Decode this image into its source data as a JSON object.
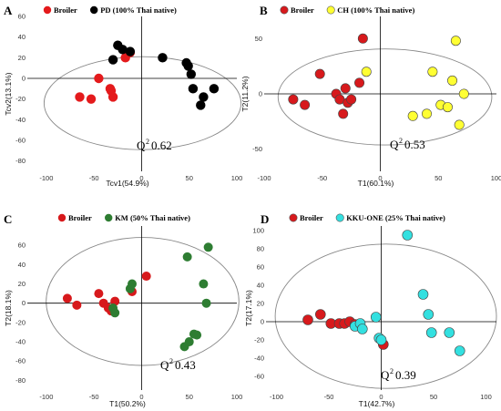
{
  "chart_data": [
    {
      "type": "scatter",
      "panel": "A",
      "xlabel": "Tcv1(54.9%)",
      "ylabel": "Tcv2(13.1%)",
      "xlim": [
        -120,
        100
      ],
      "ylim": [
        -90,
        60
      ],
      "xticks": [
        "-100",
        "-50",
        "0",
        "50",
        "100"
      ],
      "yticks": [
        "60",
        "40",
        "20",
        "0",
        "-20",
        "-40",
        "-60",
        "-80"
      ],
      "q2_label": "Q",
      "q2_sup": "2",
      "q2_value": "0.62",
      "series": [
        {
          "name": "Broiler",
          "color": "#e41a1c",
          "x": [
            -65,
            -53,
            -45,
            -33,
            -32,
            -30,
            -17,
            -12
          ],
          "y": [
            -18,
            -20,
            0,
            -10,
            -12,
            -18,
            20,
            25
          ]
        },
        {
          "name": "PD (100% Thai native)",
          "color": "#000000",
          "x": [
            -30,
            -25,
            -20,
            -12,
            22,
            47,
            49,
            52,
            54,
            62,
            65,
            76
          ],
          "y": [
            18,
            32,
            28,
            26,
            20,
            15,
            12,
            4,
            -10,
            -26,
            -18,
            -10
          ]
        }
      ]
    },
    {
      "type": "scatter",
      "panel": "B",
      "xlabel": "T1(60.1%)",
      "ylabel": "T2(11.2%)",
      "xlim": [
        -100,
        100
      ],
      "ylim": [
        -70,
        70
      ],
      "xticks": [
        "-100",
        "-50",
        "0",
        "50",
        "100"
      ],
      "yticks": [
        "50",
        "0",
        "-50"
      ],
      "q2_label": "Q",
      "q2_sup": "2",
      "q2_value": "0.53",
      "series": [
        {
          "name": "Broiler",
          "color": "#d7191c",
          "x": [
            -75,
            -65,
            -52,
            -38,
            -35,
            -32,
            -30,
            -28,
            -25,
            -18,
            -15
          ],
          "y": [
            -5,
            -10,
            18,
            0,
            -5,
            -18,
            5,
            -8,
            -5,
            10,
            50
          ]
        },
        {
          "name": "CH (100% Thai native)",
          "color": "#ffff33",
          "x": [
            -12,
            28,
            40,
            45,
            52,
            58,
            62,
            65,
            68,
            72
          ],
          "y": [
            20,
            -20,
            -18,
            20,
            -10,
            -12,
            12,
            48,
            -28,
            0
          ]
        }
      ]
    },
    {
      "type": "scatter",
      "panel": "C",
      "xlabel": "T1(50.2%)",
      "ylabel": "T2(18.1%)",
      "xlim": [
        -120,
        100
      ],
      "ylim": [
        -90,
        80
      ],
      "xticks": [
        "-100",
        "-50",
        "0",
        "50",
        "100"
      ],
      "yticks": [
        "60",
        "40",
        "20",
        "0",
        "-20",
        "-40",
        "-60",
        "-80"
      ],
      "q2_label": "Q",
      "q2_sup": "2",
      "q2_value": "0.43",
      "series": [
        {
          "name": "Broiler",
          "color": "#d7191c",
          "x": [
            -78,
            -68,
            -45,
            -40,
            -35,
            -32,
            -28,
            -10,
            5
          ],
          "y": [
            5,
            -2,
            10,
            0,
            -5,
            -8,
            2,
            12,
            28
          ]
        },
        {
          "name": "KM (50% Thai native)",
          "color": "#2e7d32",
          "x": [
            -30,
            -28,
            -12,
            -10,
            45,
            48,
            50,
            55,
            58,
            65,
            68,
            70
          ],
          "y": [
            -5,
            -10,
            15,
            20,
            -45,
            48,
            -40,
            -32,
            -33,
            20,
            0,
            58
          ]
        }
      ]
    },
    {
      "type": "scatter",
      "panel": "D",
      "xlabel": "T1(42.7%)",
      "ylabel": "T2(17.1%)",
      "xlim": [
        -110,
        110
      ],
      "ylim": [
        -75,
        105
      ],
      "xticks": [
        "-100",
        "-50",
        "0",
        "50",
        "100"
      ],
      "yticks": [
        "100",
        "80",
        "60",
        "40",
        "20",
        "0",
        "-20",
        "-40",
        "-60"
      ],
      "q2_label": "Q",
      "q2_sup": "2",
      "q2_value": "0.39",
      "series": [
        {
          "name": "Broiler",
          "color": "#d7191c",
          "x": [
            -70,
            -58,
            -48,
            -40,
            -35,
            -30,
            -25,
            2
          ],
          "y": [
            2,
            8,
            -2,
            -2,
            -2,
            0,
            -3,
            -25
          ]
        },
        {
          "name": "KKU-ONE (25% Thai native)",
          "color": "#33e0e0",
          "x": [
            -25,
            -20,
            -18,
            -5,
            -2,
            0,
            25,
            40,
            45,
            48,
            65,
            75
          ],
          "y": [
            -5,
            -2,
            -8,
            5,
            -18,
            -20,
            95,
            30,
            8,
            -12,
            -12,
            -32
          ]
        }
      ]
    }
  ]
}
